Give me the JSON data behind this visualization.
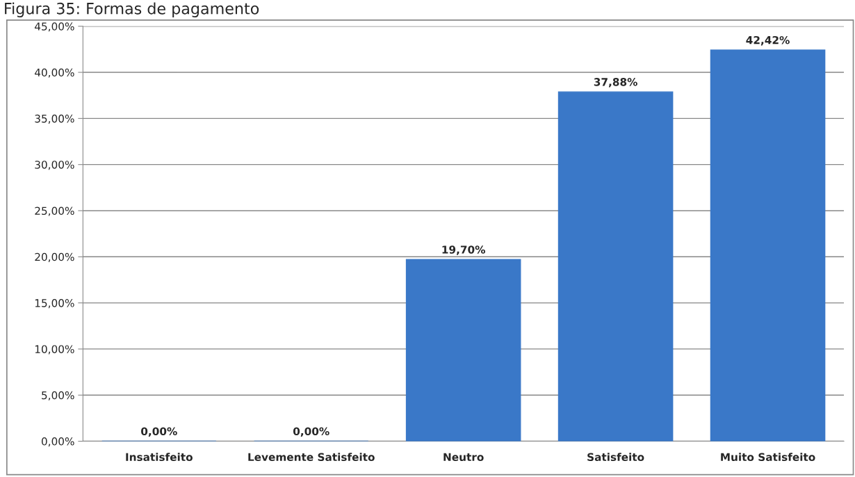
{
  "chart_data": {
    "type": "bar",
    "title": "Figura 35: Formas de pagamento",
    "categories": [
      "Insatisfeito",
      "Levemente Satisfeito",
      "Neutro",
      "Satisfeito",
      "Muito Satisfeito"
    ],
    "values": [
      0.0,
      0.0,
      19.7,
      37.88,
      42.42
    ],
    "color": "#3a78c8",
    "value_labels": [
      "0,00%",
      "0,00%",
      "19,70%",
      "37,88%",
      "42,42%"
    ],
    "ylim": [
      0,
      45
    ],
    "yticks": [
      {
        "value": 0,
        "label": "0,00%"
      },
      {
        "value": 5,
        "label": "5,00%"
      },
      {
        "value": 10,
        "label": "10,00%"
      },
      {
        "value": 15,
        "label": "15,00%"
      },
      {
        "value": 20,
        "label": "20,00%"
      },
      {
        "value": 25,
        "label": "25,00%"
      },
      {
        "value": 30,
        "label": "30,00%"
      },
      {
        "value": 35,
        "label": "35,00%"
      },
      {
        "value": 40,
        "label": "40,00%"
      },
      {
        "value": 45,
        "label": "45,00%"
      }
    ],
    "grid": "y"
  }
}
